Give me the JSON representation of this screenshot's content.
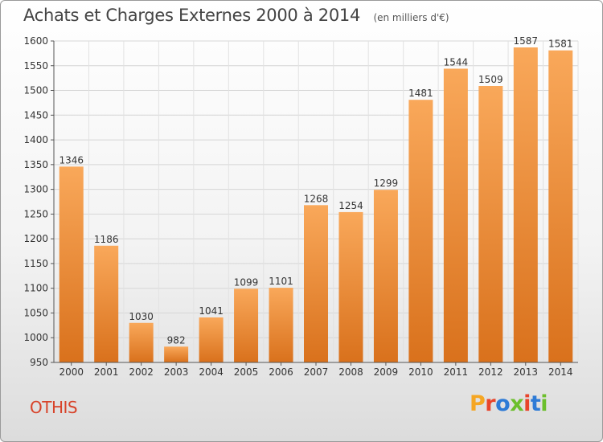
{
  "header": {
    "title": "Achats et Charges Externes 2000 à 2014",
    "subtitle": "(en milliers d'€)"
  },
  "footer": {
    "commune": "OTHIS",
    "logo_text": "Proxiti",
    "logo_colors": [
      "#f5a623",
      "#e8442b",
      "#2e7bd6",
      "#6cbf2c",
      "#e8442b",
      "#2e7bd6",
      "#6cbf2c"
    ]
  },
  "chart_data": {
    "type": "bar",
    "title": "Achats et Charges Externes 2000 à 2014",
    "subtitle": "(en milliers d'€)",
    "categories": [
      "2000",
      "2001",
      "2002",
      "2003",
      "2004",
      "2005",
      "2006",
      "2007",
      "2008",
      "2009",
      "2010",
      "2011",
      "2012",
      "2013",
      "2014"
    ],
    "values": [
      1346,
      1186,
      1030,
      982,
      1041,
      1099,
      1101,
      1268,
      1254,
      1299,
      1481,
      1544,
      1509,
      1587,
      1581
    ],
    "ylim": [
      950,
      1600
    ],
    "yticks": [
      950,
      1000,
      1050,
      1100,
      1150,
      1200,
      1250,
      1300,
      1350,
      1400,
      1450,
      1500,
      1550,
      1600
    ],
    "grid": true,
    "bar_color_light": "#f9a85a",
    "bar_color_dark": "#d9711c",
    "xlabel": "",
    "ylabel": ""
  }
}
